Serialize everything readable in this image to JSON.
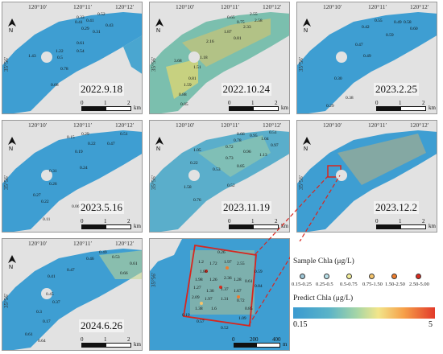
{
  "coords": {
    "lon1": "120°10′",
    "lon2": "120°11′",
    "lon3": "120°12′",
    "lat": "35°56′"
  },
  "scale_labels": [
    "0",
    "1",
    "2",
    "km"
  ],
  "zoom_scale_labels": [
    "0",
    "200",
    "400",
    "m"
  ],
  "panels": [
    {
      "date": "2022.9.18",
      "values": [
        "0.52",
        "0.41",
        "0.41",
        "0.43",
        "0.33",
        "0.29",
        "0.31",
        "0.61",
        "0.54",
        "0.78",
        "0.5",
        "0.68",
        "1.22",
        "1.43"
      ]
    },
    {
      "date": "2022.10.24",
      "values": [
        "2.55",
        "2.58",
        "0.75",
        "2.33",
        "0.65",
        "1.87",
        "0.81",
        "2.16",
        "1.18",
        "1.51",
        "0.81",
        "3.68",
        "1.59",
        "0.88",
        "0.85"
      ]
    },
    {
      "date": "2023.2.25",
      "values": [
        "0.49",
        "0.58",
        "0.60",
        "0.55",
        "0.59",
        "0.42",
        "0.47",
        "0.49",
        "0.30",
        "0.38",
        "0.29"
      ]
    },
    {
      "date": "2023.5.16",
      "values": [
        "0.51",
        "0.47",
        "0.29",
        "0.15",
        "0.22",
        "0.19",
        "0.24",
        "0.31",
        "0.26",
        "0.27",
        "0.22",
        "0.06",
        "0.11"
      ]
    },
    {
      "date": "2023.11.19",
      "values": [
        "0.51",
        "0.95",
        "1.04",
        "0.97",
        "0.78",
        "0.72",
        "1.13",
        "0.66",
        "0.96",
        "0.73",
        "0.85",
        "0.53",
        "0.22",
        "1.58",
        "0.76",
        "0.52",
        "1.05"
      ]
    },
    {
      "date": "2023.12.2",
      "values": []
    },
    {
      "date": "2024.6.26",
      "values": [
        "0.49",
        "0.46",
        "0.53",
        "0.61",
        "0.66",
        "0.47",
        "0.41",
        "0.45",
        "0.37",
        "0.17",
        "0.3",
        "0.61",
        "0.64"
      ]
    }
  ],
  "zoom_values": [
    "0.26",
    "1.2",
    "1.72",
    "1.97",
    "2.55",
    "1.86",
    "0.59",
    "1.98",
    "1.26",
    "2.36",
    "1.28",
    "0.61",
    "0.84",
    "1.27",
    "1.36",
    "1.37",
    "1.67",
    "2.09",
    "1.97",
    "1.31",
    "0.72",
    "1.38",
    "1.6",
    "0.85",
    "1.09",
    "0.57",
    "0.52",
    "0.19"
  ],
  "legend": {
    "sample_title": "Sample Chla (μg/L)",
    "categories": [
      {
        "label": "0.15-0.25",
        "color": "#9fc6d6"
      },
      {
        "label": "0.25-0.5",
        "color": "#b8e0e8"
      },
      {
        "label": "0.5-0.75",
        "color": "#f4ef9a"
      },
      {
        "label": "0.75-1.50",
        "color": "#f5c46b"
      },
      {
        "label": "1.50-2.50",
        "color": "#ef7d2d"
      },
      {
        "label": "2.50-5.00",
        "color": "#d92b1f"
      }
    ],
    "predict_title": "Predict Chla (μg/L)",
    "ramp_min": "0.15",
    "ramp_max": "5"
  },
  "colors": {
    "water": "#3e9ed2",
    "land": "#e2e2e2",
    "highlight_box": "#d7261e"
  }
}
